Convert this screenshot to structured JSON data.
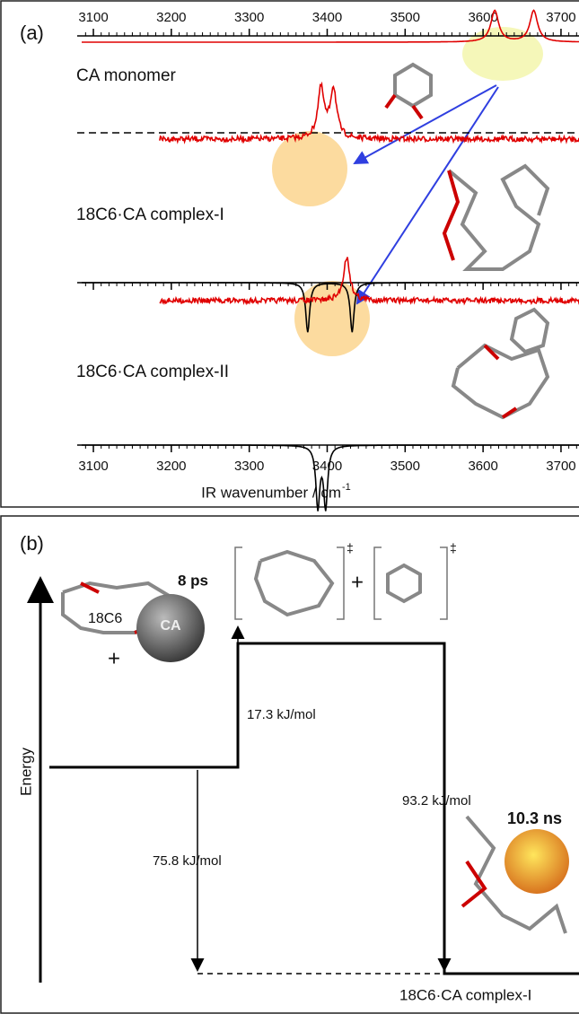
{
  "panel_a": {
    "label": "(a)",
    "xlim": [
      3085,
      3730
    ],
    "xticks": [
      3100,
      3200,
      3300,
      3400,
      3500,
      3600,
      3700
    ],
    "xlabel": "IR wavenumber / cm",
    "xlabel_sup": "-1",
    "labels": [
      "CA monomer",
      "18C6·CA complex-I",
      "18C6·CA complex-II"
    ],
    "spectra": [
      {
        "peaks": [
          3615,
          3665
        ]
      },
      {
        "peaks": [
          3392,
          3408
        ]
      },
      {
        "peaks": [
          3375,
          3432
        ]
      },
      {
        "peaks": [
          3425
        ]
      },
      {
        "peaks": [
          3388,
          3398
        ]
      }
    ]
  },
  "panel_b": {
    "label": "(b)",
    "axis_label": "Energy",
    "reactant": "18C6",
    "probe": "CA",
    "reactant_time": "8 ps",
    "plus": "+",
    "dagger": "‡",
    "barrier": "17.3 kJ/mol",
    "binding": "75.8 kJ/mol",
    "descent": "93.2 kJ/mol",
    "product_time": "10.3 ns",
    "product": "18C6·CA complex-I"
  }
}
